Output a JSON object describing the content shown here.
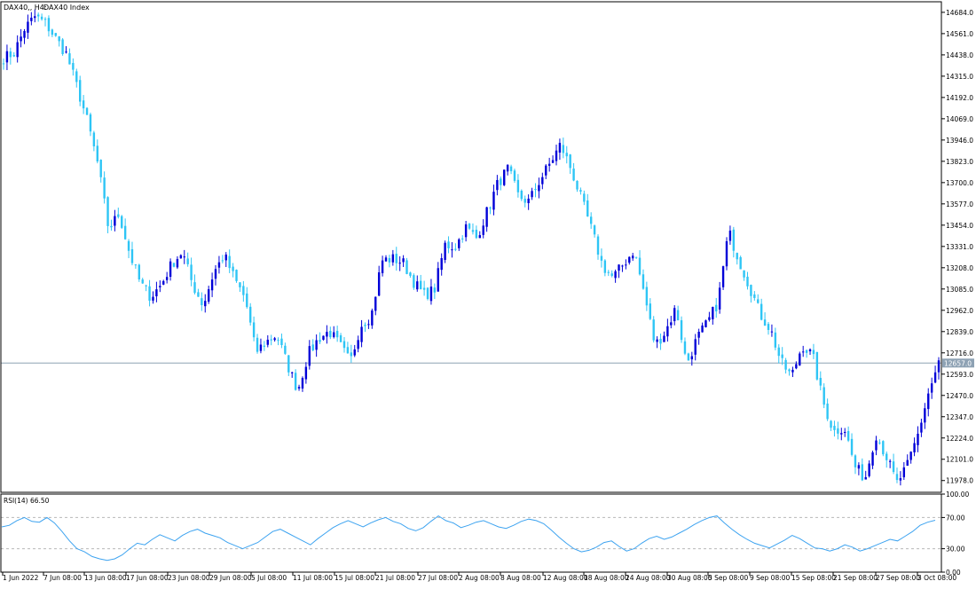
{
  "header": {
    "symbol": "DAX40,, H4:",
    "description": "DAX40 Index"
  },
  "rsi_panel": {
    "label": "RSI(14) 66.50"
  },
  "colors": {
    "bull": "#0000d8",
    "bear": "#2ec5f5",
    "rsi_line": "#3da3f0",
    "current_price_line": "#8ea2b4",
    "price_tag_bg": "#8ea2b4",
    "frame": "#000000",
    "dashed_level": "#b8b8b8"
  },
  "chart_data": [
    {
      "type": "candlestick",
      "title": "DAX40 Index",
      "timeframe": "H4",
      "ylim": [
        11910,
        14745
      ],
      "y_ticks": [
        "14684.0",
        "14561.0",
        "14438.0",
        "14315.0",
        "14192.0",
        "14069.0",
        "13946.0",
        "13823.0",
        "13700.0",
        "13577.0",
        "13454.0",
        "13331.0",
        "13208.0",
        "13085.0",
        "12962.0",
        "12839.0",
        "12716.0",
        "12593.0",
        "12470.0",
        "12347.0",
        "12224.0",
        "12101.0",
        "11978.0"
      ],
      "x_ticks": [
        "1 Jun 2022",
        "7 Jun 08:00",
        "13 Jun 08:00",
        "17 Jun 08:00",
        "23 Jun 08:00",
        "29 Jun 08:00",
        "5 Jul 08:00",
        "11 Jul 08:00",
        "15 Jul 08:00",
        "21 Jul 08:00",
        "27 Jul 08:00",
        "2 Aug 08:00",
        "8 Aug 08:00",
        "12 Aug 08:00",
        "18 Aug 08:00",
        "24 Aug 08:00",
        "30 Aug 08:00",
        "5 Sep 08:00",
        "9 Sep 08:00",
        "15 Sep 08:00",
        "21 Sep 08:00",
        "27 Sep 08:00",
        "3 Oct 08:00"
      ],
      "current_price": 12657.0,
      "current_price_label": "12657.0",
      "series": [
        {
          "name": "DAX40",
          "close_path": [
            14420,
            14450,
            14590,
            14660,
            14620,
            14530,
            14440,
            14250,
            14050,
            13800,
            13430,
            13520,
            13290,
            13120,
            13040,
            13110,
            13230,
            13300,
            13110,
            12990,
            13180,
            13280,
            13140,
            13030,
            12720,
            12780,
            12820,
            12650,
            12500,
            12710,
            12800,
            12840,
            12760,
            12660,
            12880,
            12930,
            13250,
            13260,
            13240,
            13130,
            13050,
            13080,
            13340,
            13330,
            13440,
            13380,
            13530,
            13690,
            13780,
            13620,
            13590,
            13710,
            13810,
            13920,
            13780,
            13600,
            13420,
            13220,
            13150,
            13230,
            13310,
            13050,
            12760,
            12840,
            12980,
            12650,
            12800,
            12890,
            13010,
            13420,
            13250,
            13100,
            12940,
            12850,
            12660,
            12580,
            12760,
            12700,
            12430,
            12260,
            12290,
            12060,
            11990,
            12250,
            12120,
            11960,
            12060,
            12240,
            12480,
            12657
          ]
        }
      ]
    },
    {
      "type": "line",
      "title": "RSI(14) 66.50",
      "ylim": [
        0,
        100
      ],
      "levels": [
        30,
        70
      ],
      "y_ticks": [
        "100.00",
        "70.00",
        "30.00",
        "0.00"
      ],
      "last_value": 66.5,
      "series": [
        {
          "name": "RSI(14)",
          "anchor_values": [
            58,
            60,
            66,
            70,
            65,
            64,
            70,
            63,
            52,
            40,
            30,
            26,
            20,
            17,
            15,
            17,
            22,
            30,
            37,
            35,
            42,
            48,
            44,
            40,
            47,
            52,
            55,
            50,
            47,
            44,
            38,
            34,
            30,
            34,
            38,
            45,
            52,
            55,
            50,
            45,
            40,
            35,
            43,
            50,
            57,
            62,
            66,
            62,
            58,
            63,
            67,
            70,
            65,
            62,
            56,
            53,
            57,
            65,
            72,
            66,
            63,
            57,
            60,
            64,
            66,
            62,
            58,
            56,
            60,
            65,
            68,
            66,
            62,
            54,
            45,
            37,
            30,
            26,
            28,
            32,
            38,
            40,
            33,
            27,
            30,
            37,
            43,
            46,
            42,
            45,
            50,
            55,
            61,
            66,
            70,
            72,
            63,
            55,
            48,
            42,
            37,
            34,
            31,
            36,
            41,
            47,
            43,
            37,
            31,
            30,
            27,
            30,
            35,
            32,
            27,
            30,
            34,
            38,
            42,
            40,
            46,
            52,
            60,
            64,
            66.5
          ]
        }
      ]
    }
  ]
}
